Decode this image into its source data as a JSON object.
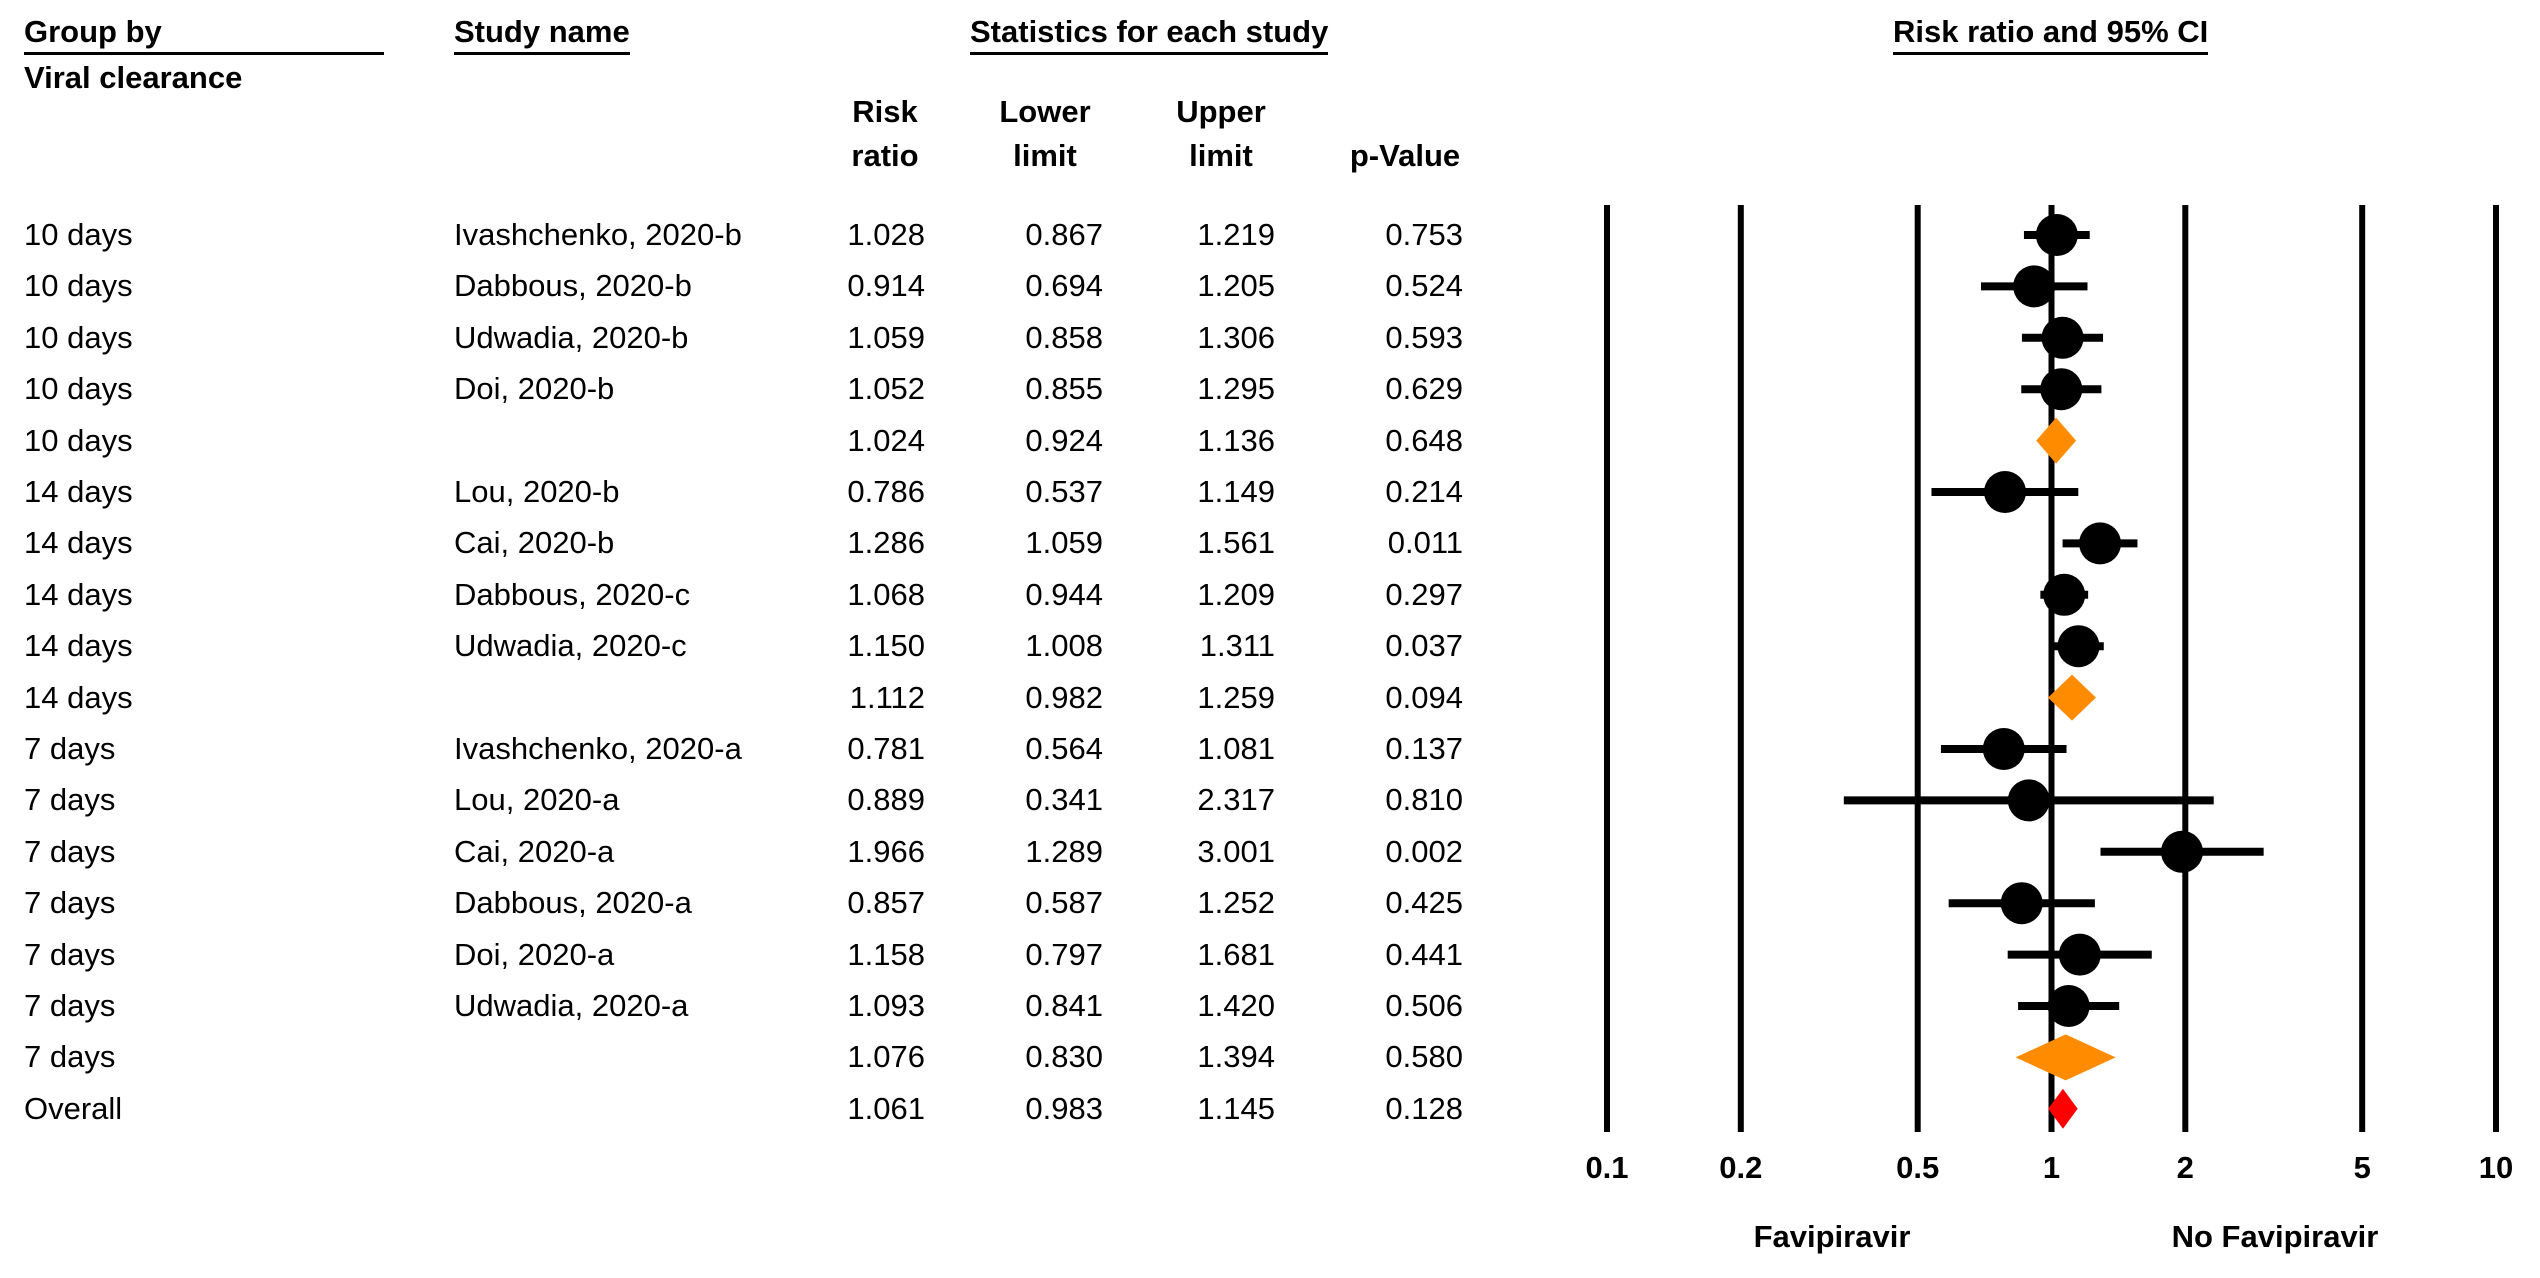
{
  "headers": {
    "group_by": "Group by",
    "group_sub": "Viral clearance",
    "study_name": "Study name",
    "statistics": "Statistics for each study",
    "plot_title": "Risk ratio and 95% CI",
    "risk_ratio": [
      "Risk",
      "ratio"
    ],
    "lower_limit": [
      "Lower",
      "limit"
    ],
    "upper_limit": [
      "Upper",
      "limit"
    ],
    "p_value": "p-Value"
  },
  "rows": [
    {
      "group": "10 days",
      "study": "Ivashchenko, 2020-b",
      "rr": "1.028",
      "lower": "0.867",
      "upper": "1.219",
      "p": "0.753",
      "kind": "study"
    },
    {
      "group": "10 days",
      "study": "Dabbous, 2020-b",
      "rr": "0.914",
      "lower": "0.694",
      "upper": "1.205",
      "p": "0.524",
      "kind": "study"
    },
    {
      "group": "10 days",
      "study": "Udwadia, 2020-b",
      "rr": "1.059",
      "lower": "0.858",
      "upper": "1.306",
      "p": "0.593",
      "kind": "study"
    },
    {
      "group": "10 days",
      "study": "Doi, 2020-b",
      "rr": "1.052",
      "lower": "0.855",
      "upper": "1.295",
      "p": "0.629",
      "kind": "study"
    },
    {
      "group": "10 days",
      "study": "",
      "rr": "1.024",
      "lower": "0.924",
      "upper": "1.136",
      "p": "0.648",
      "kind": "subtotal"
    },
    {
      "group": "14 days",
      "study": "Lou, 2020-b",
      "rr": "0.786",
      "lower": "0.537",
      "upper": "1.149",
      "p": "0.214",
      "kind": "study"
    },
    {
      "group": "14 days",
      "study": "Cai, 2020-b",
      "rr": "1.286",
      "lower": "1.059",
      "upper": "1.561",
      "p": "0.011",
      "kind": "study"
    },
    {
      "group": "14 days",
      "study": "Dabbous, 2020-c",
      "rr": "1.068",
      "lower": "0.944",
      "upper": "1.209",
      "p": "0.297",
      "kind": "study"
    },
    {
      "group": "14 days",
      "study": "Udwadia, 2020-c",
      "rr": "1.150",
      "lower": "1.008",
      "upper": "1.311",
      "p": "0.037",
      "kind": "study"
    },
    {
      "group": "14 days",
      "study": "",
      "rr": "1.112",
      "lower": "0.982",
      "upper": "1.259",
      "p": "0.094",
      "kind": "subtotal"
    },
    {
      "group": "7 days",
      "study": "Ivashchenko, 2020-a",
      "rr": "0.781",
      "lower": "0.564",
      "upper": "1.081",
      "p": "0.137",
      "kind": "study"
    },
    {
      "group": "7 days",
      "study": "Lou, 2020-a",
      "rr": "0.889",
      "lower": "0.341",
      "upper": "2.317",
      "p": "0.810",
      "kind": "study"
    },
    {
      "group": "7 days",
      "study": "Cai, 2020-a",
      "rr": "1.966",
      "lower": "1.289",
      "upper": "3.001",
      "p": "0.002",
      "kind": "study"
    },
    {
      "group": "7 days",
      "study": "Dabbous, 2020-a",
      "rr": "0.857",
      "lower": "0.587",
      "upper": "1.252",
      "p": "0.425",
      "kind": "study"
    },
    {
      "group": "7 days",
      "study": "Doi, 2020-a",
      "rr": "1.158",
      "lower": "0.797",
      "upper": "1.681",
      "p": "0.441",
      "kind": "study"
    },
    {
      "group": "7 days",
      "study": "Udwadia, 2020-a",
      "rr": "1.093",
      "lower": "0.841",
      "upper": "1.420",
      "p": "0.506",
      "kind": "study"
    },
    {
      "group": "7 days",
      "study": "",
      "rr": "1.076",
      "lower": "0.830",
      "upper": "1.394",
      "p": "0.580",
      "kind": "subtotal"
    },
    {
      "group": "Overall",
      "study": "",
      "rr": "1.061",
      "lower": "0.983",
      "upper": "1.145",
      "p": "0.128",
      "kind": "overall"
    }
  ],
  "chart_data": {
    "type": "scatter",
    "title": "Risk ratio and 95% CI",
    "x_scale": "log",
    "x_ticks": [
      0.1,
      0.2,
      0.5,
      1,
      2,
      5,
      10
    ],
    "x_tick_labels": [
      "0.1",
      "0.2",
      "0.5",
      "1",
      "2",
      "5",
      "10"
    ],
    "xlim": [
      0.1,
      10
    ],
    "gridlines": "vertical at each tick",
    "left_label": "Favipiravir",
    "right_label": "No Favipiravir",
    "colors": {
      "study": "#000000",
      "subtotal": "#ff8c00",
      "overall": "#ff0000"
    }
  }
}
